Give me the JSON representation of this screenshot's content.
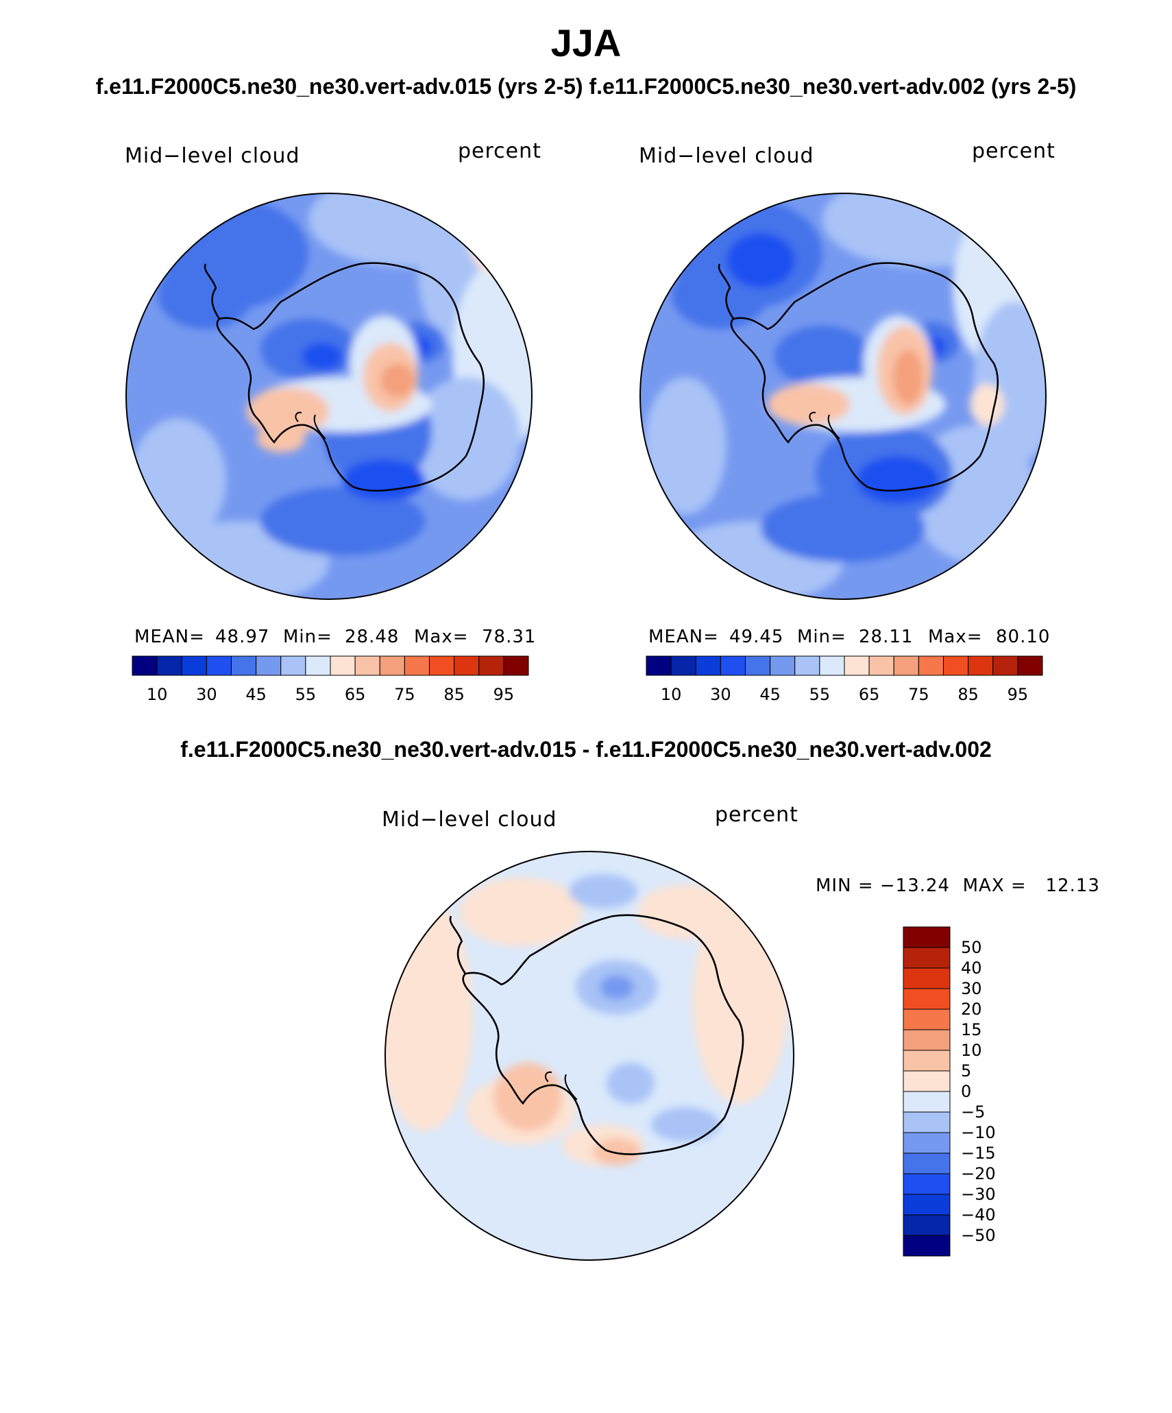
{
  "title": "JJA",
  "case_titles": "f.e11.F2000C5.ne30_ne30.vert-adv.015 (yrs 2-5)  f.e11.F2000C5.ne30_ne30.vert-adv.002 (yrs 2-5)",
  "diff_title": "f.e11.F2000C5.ne30_ne30.vert-adv.015 - f.e11.F2000C5.ne30_ne30.vert-adv.002",
  "panels": [
    {
      "variable": "Mid−level cloud",
      "units": "percent",
      "stats": {
        "mean_label": "MEAN=",
        "mean": "48.97",
        "min_label": "Min=",
        "min": "28.48",
        "max_label": "Max=",
        "max": "78.31"
      }
    },
    {
      "variable": "Mid−level cloud",
      "units": "percent",
      "stats": {
        "mean_label": "MEAN=",
        "mean": "49.45",
        "min_label": "Min=",
        "min": "28.11",
        "max_label": "Max=",
        "max": "80.10"
      }
    }
  ],
  "diff_panel": {
    "variable": "Mid−level cloud",
    "units": "percent",
    "stats_text": "MIN = −13.24  MAX =   12.13"
  },
  "abs_colorbar": {
    "tick_labels": [
      "10",
      "30",
      "45",
      "55",
      "65",
      "75",
      "85",
      "95"
    ],
    "colors": [
      "#000080",
      "#0526a8",
      "#0b3ddb",
      "#1f4ff0",
      "#4573ea",
      "#7699f0",
      "#a9c3f7",
      "#dbe9fb",
      "#fde3d3",
      "#f9c3a8",
      "#f4a07c",
      "#f5774a",
      "#f14f22",
      "#dd3510",
      "#b5230b",
      "#800000"
    ]
  },
  "diff_colorbar": {
    "tick_labels": [
      "50",
      "40",
      "30",
      "20",
      "15",
      "10",
      "5",
      "0",
      "−5",
      "−10",
      "−15",
      "−20",
      "−30",
      "−40",
      "−50"
    ],
    "colors": [
      "#800000",
      "#b5230b",
      "#dd3510",
      "#f14f22",
      "#f5774a",
      "#f4a07c",
      "#f9c3a8",
      "#fde3d3",
      "#dbe9fb",
      "#a9c3f7",
      "#7699f0",
      "#4573ea",
      "#1f4ff0",
      "#0b3ddb",
      "#0526a8",
      "#000080"
    ]
  },
  "colors": {
    "neutral_blue": "#a9c3f7",
    "coast": "#000000"
  }
}
